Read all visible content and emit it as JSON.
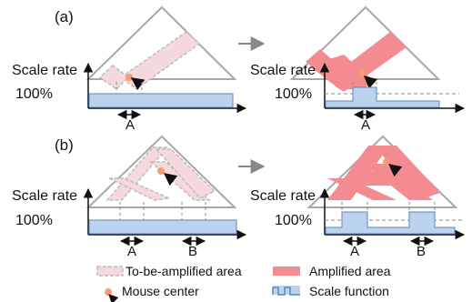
{
  "panels": {
    "a": {
      "label": "(a)",
      "marker_a": "A"
    },
    "b": {
      "label": "(b)",
      "marker_a": "A",
      "marker_b": "B"
    }
  },
  "axis": {
    "y_title": "Scale rate",
    "baseline_label": "100%"
  },
  "legend": {
    "to_be_amplified": "To-be-amplified area",
    "amplified": "Amplified area",
    "mouse_center": "Mouse center",
    "scale_function": "Scale function"
  },
  "colors": {
    "triangle": "#a8a8a8",
    "to_be_amplified_fill": "#f5d9dc",
    "to_be_amplified_stroke": "#bdbdbd",
    "amplified_fill": "#f48b91",
    "scale_fill": "#bcd3ee",
    "scale_stroke": "#5b86c4",
    "mouse_center": "#f79a77",
    "dashed_line": "#888888",
    "axis": "#111111"
  }
}
